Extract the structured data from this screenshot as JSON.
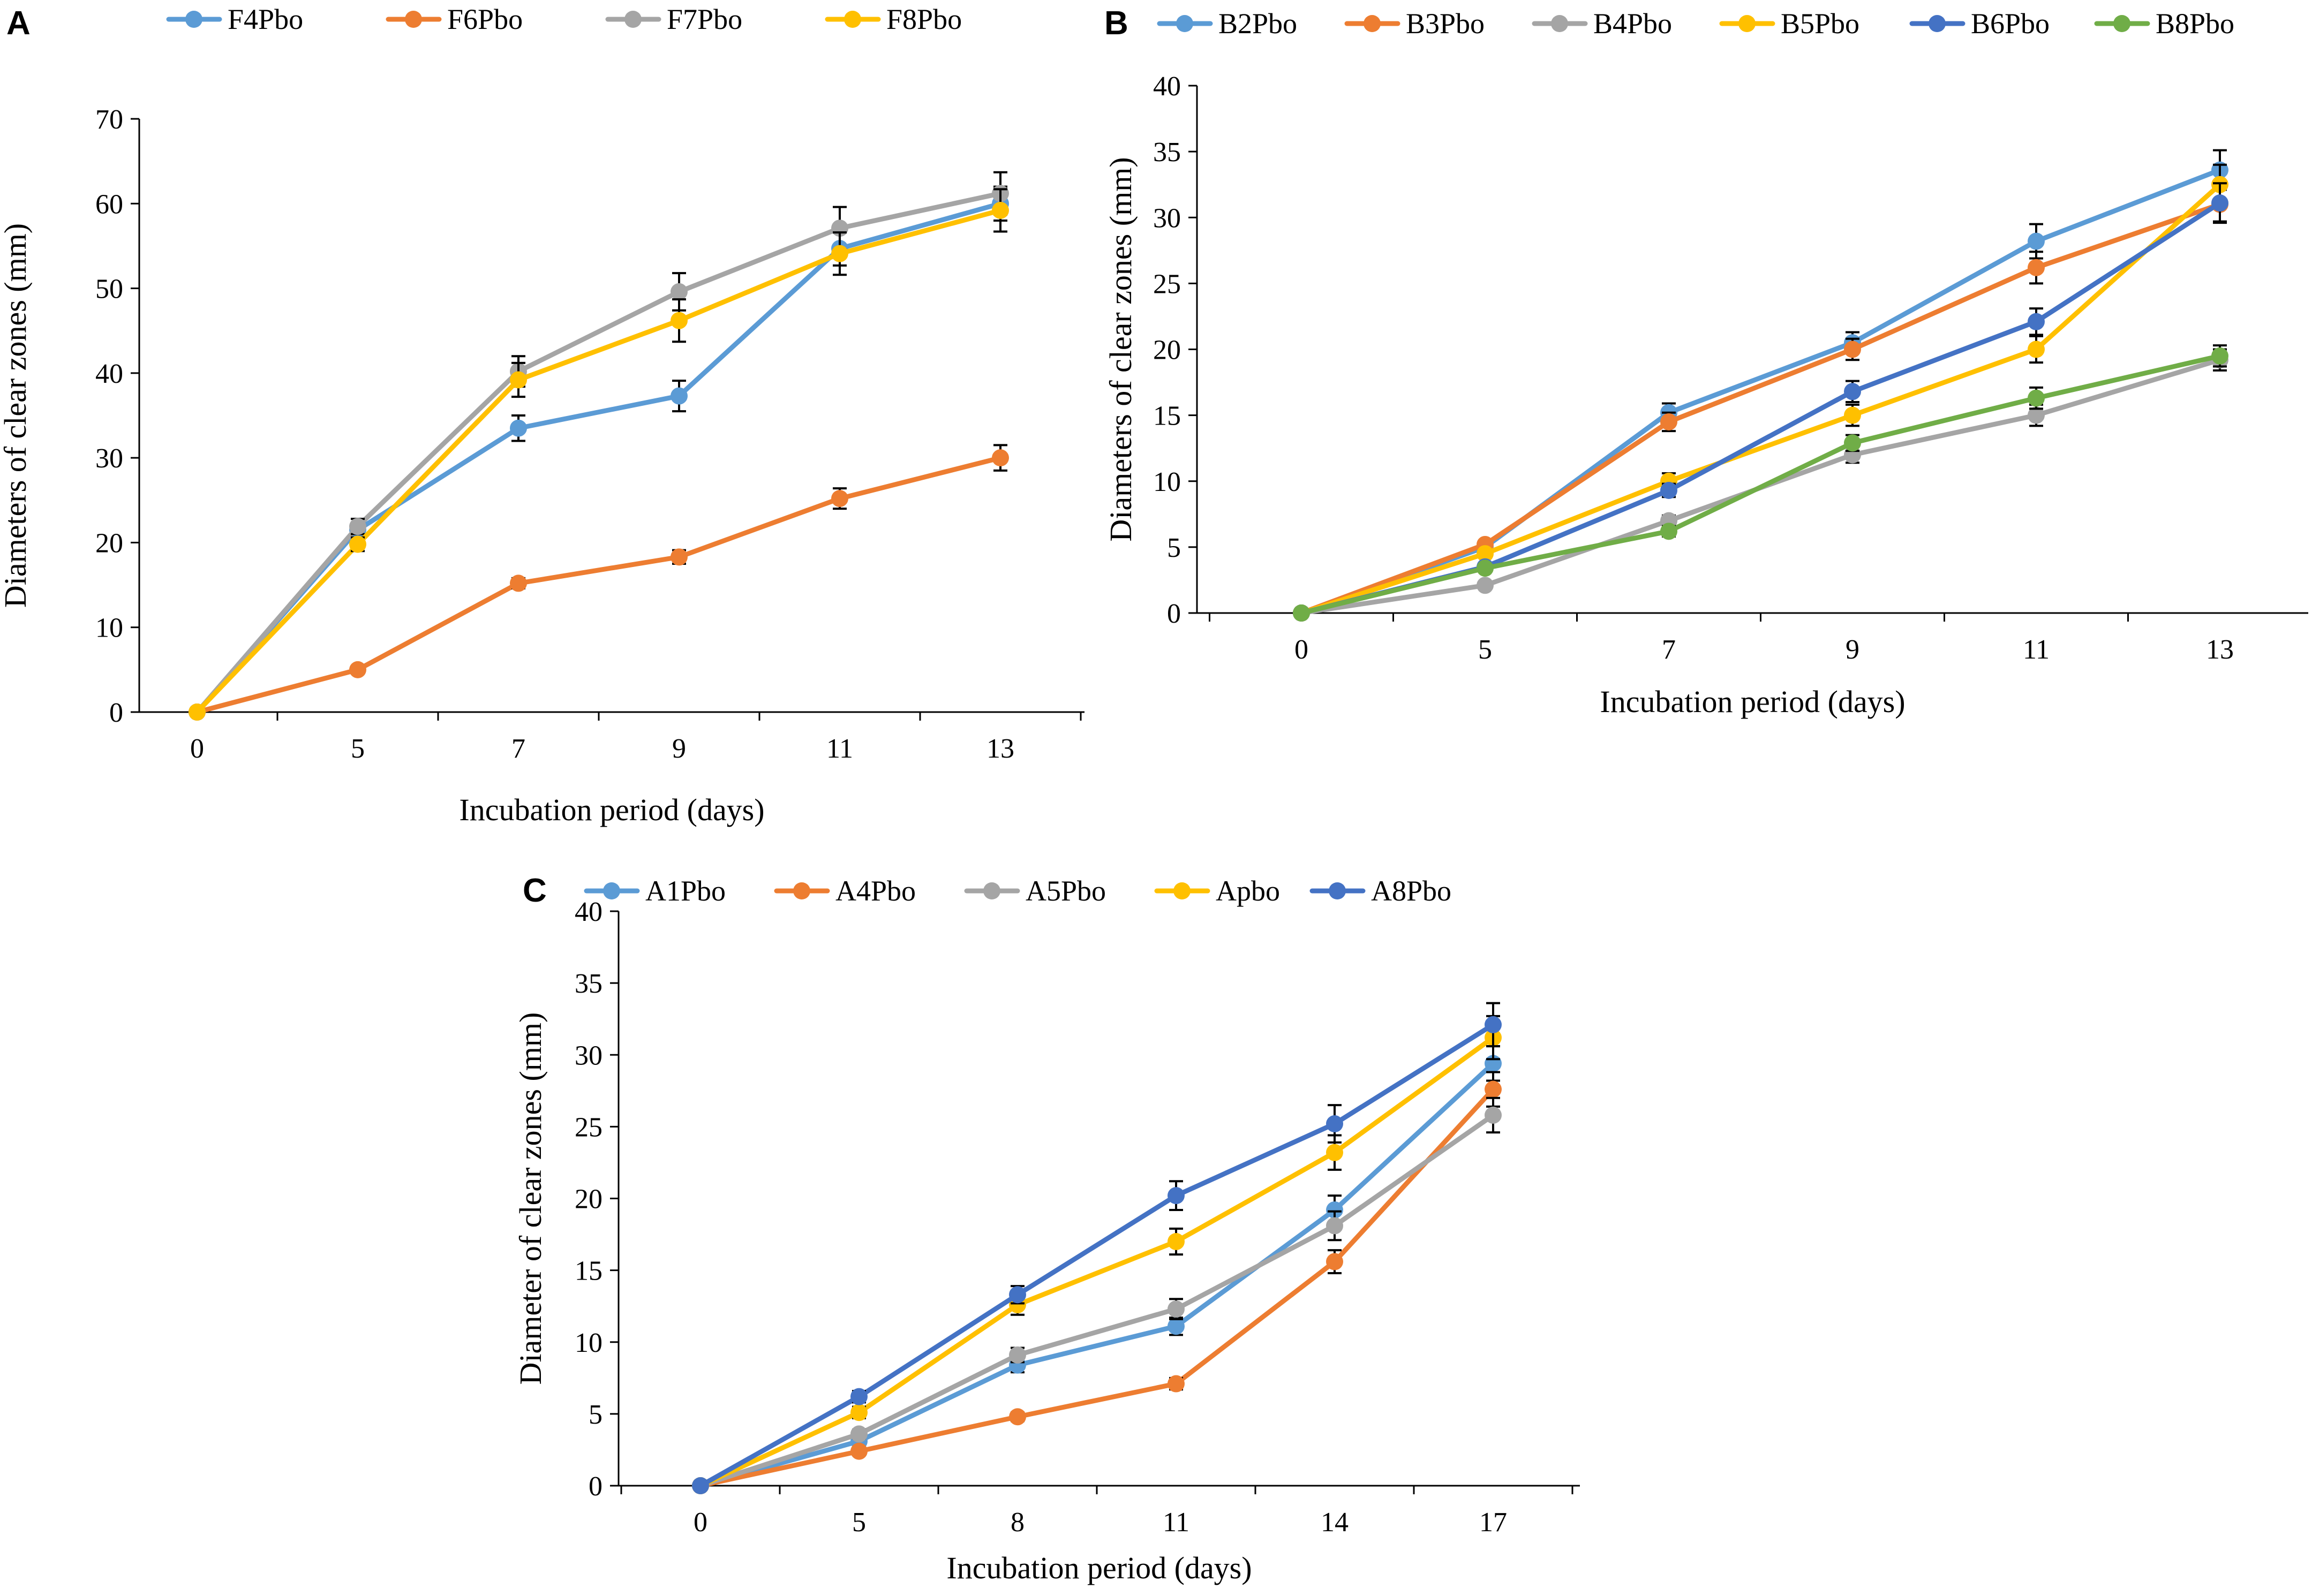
{
  "chart_data": [
    {
      "panel": "A",
      "type": "line",
      "title": "",
      "xlabel": "Incubation period (days)",
      "ylabel": "Diameters of clear zones (mm)",
      "categories": [
        "0",
        "5",
        "7",
        "9",
        "11",
        "13"
      ],
      "ylim": [
        0,
        70
      ],
      "yticks": [
        0,
        10,
        20,
        30,
        40,
        50,
        60,
        70
      ],
      "grid": false,
      "legend": "top",
      "series": [
        {
          "name": "F4Pbo",
          "color": "#5B9BD5",
          "values": [
            0,
            21.5,
            33.5,
            37.3,
            54.7,
            60.0
          ],
          "errors": [
            0,
            0.8,
            1.5,
            1.8,
            2.0,
            2.0
          ]
        },
        {
          "name": "F6Pbo",
          "color": "#ED7D31",
          "values": [
            0,
            5.0,
            15.2,
            18.3,
            25.2,
            30.0
          ],
          "errors": [
            0,
            0.4,
            0.6,
            0.8,
            1.2,
            1.5
          ]
        },
        {
          "name": "F7Pbo",
          "color": "#A5A5A5",
          "values": [
            0,
            21.9,
            40.2,
            49.6,
            57.1,
            61.2
          ],
          "errors": [
            0,
            0.9,
            1.8,
            2.2,
            2.5,
            2.5
          ]
        },
        {
          "name": "F8Pbo",
          "color": "#FFC000",
          "values": [
            0,
            19.8,
            39.2,
            46.2,
            54.1,
            59.2
          ],
          "errors": [
            0,
            0.8,
            2.0,
            2.5,
            2.5,
            2.5
          ]
        }
      ]
    },
    {
      "panel": "B",
      "type": "line",
      "title": "",
      "xlabel": "Incubation period (days)",
      "ylabel": "Diameters of clear zones (mm)",
      "categories": [
        "0",
        "5",
        "7",
        "9",
        "11",
        "13"
      ],
      "ylim": [
        0,
        40
      ],
      "yticks": [
        0,
        5,
        10,
        15,
        20,
        25,
        30,
        35,
        40
      ],
      "grid": false,
      "legend": "top",
      "series": [
        {
          "name": "B2Pbo",
          "color": "#5B9BD5",
          "values": [
            0,
            5.0,
            15.2,
            20.5,
            28.2,
            33.6
          ],
          "errors": [
            0,
            0.3,
            0.7,
            0.8,
            1.3,
            1.5
          ]
        },
        {
          "name": "B3Pbo",
          "color": "#ED7D31",
          "values": [
            0,
            5.2,
            14.5,
            20.0,
            26.2,
            31.0
          ],
          "errors": [
            0,
            0.3,
            0.7,
            0.8,
            1.2,
            1.3
          ]
        },
        {
          "name": "B4Pbo",
          "color": "#A5A5A5",
          "values": [
            0,
            2.1,
            7.0,
            12.0,
            15.0,
            19.2
          ],
          "errors": [
            0,
            0.2,
            0.4,
            0.6,
            0.8,
            0.8
          ]
        },
        {
          "name": "B5Pbo",
          "color": "#FFC000",
          "values": [
            0,
            4.5,
            10.0,
            15.0,
            20.0,
            32.5
          ],
          "errors": [
            0,
            0.3,
            0.6,
            0.8,
            1.0,
            1.5
          ]
        },
        {
          "name": "B6Pbo",
          "color": "#4472C4",
          "values": [
            0,
            3.5,
            9.3,
            16.8,
            22.1,
            31.1
          ],
          "errors": [
            0,
            0.3,
            0.5,
            0.8,
            1.0,
            1.5
          ]
        },
        {
          "name": "B8Pbo",
          "color": "#70AD47",
          "values": [
            0,
            3.4,
            6.2,
            12.9,
            16.3,
            19.5
          ],
          "errors": [
            0,
            0.3,
            0.4,
            0.6,
            0.8,
            0.8
          ]
        }
      ]
    },
    {
      "panel": "C",
      "type": "line",
      "title": "",
      "xlabel": "Incubation period (days)",
      "ylabel": "Diameter of clear zones (mm)",
      "categories": [
        "0",
        "5",
        "8",
        "11",
        "14",
        "17"
      ],
      "ylim": [
        0,
        40
      ],
      "yticks": [
        0,
        5,
        10,
        15,
        20,
        25,
        30,
        35,
        40
      ],
      "grid": false,
      "legend": "top",
      "series": [
        {
          "name": "A1Pbo",
          "color": "#5B9BD5",
          "values": [
            0,
            3.1,
            8.4,
            11.1,
            19.2,
            29.4
          ],
          "errors": [
            0,
            0.3,
            0.5,
            0.6,
            1.0,
            1.2
          ]
        },
        {
          "name": "A4Pbo",
          "color": "#ED7D31",
          "values": [
            0,
            2.4,
            4.8,
            7.1,
            15.6,
            27.6
          ],
          "errors": [
            0,
            0.2,
            0.3,
            0.4,
            0.8,
            1.2
          ]
        },
        {
          "name": "A5Pbo",
          "color": "#A5A5A5",
          "values": [
            0,
            3.6,
            9.1,
            12.3,
            18.1,
            25.8
          ],
          "errors": [
            0,
            0.3,
            0.5,
            0.7,
            1.0,
            1.2
          ]
        },
        {
          "name": "Apbo",
          "color": "#FFC000",
          "values": [
            0,
            5.1,
            12.6,
            17.0,
            23.2,
            31.2
          ],
          "errors": [
            0,
            0.4,
            0.7,
            0.9,
            1.2,
            1.5
          ]
        },
        {
          "name": "A8Pbo",
          "color": "#4472C4",
          "values": [
            0,
            6.2,
            13.3,
            20.2,
            25.2,
            32.1
          ],
          "errors": [
            0,
            0.4,
            0.6,
            1.0,
            1.3,
            1.5
          ]
        }
      ]
    }
  ]
}
